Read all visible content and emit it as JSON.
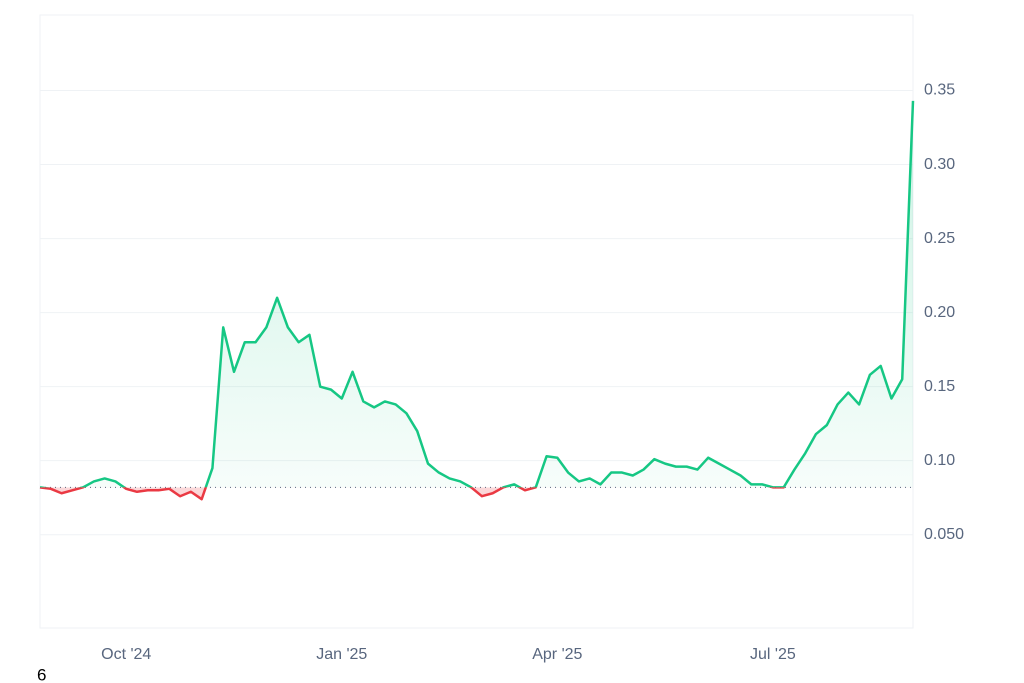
{
  "footer_text": "6",
  "chart_data": {
    "type": "line",
    "categories": [
      null,
      null,
      null,
      null,
      null,
      null,
      null,
      null,
      "Oct '24",
      null,
      null,
      null,
      null,
      null,
      null,
      null,
      null,
      null,
      null,
      null,
      null,
      null,
      null,
      null,
      null,
      null,
      null,
      null,
      "Jan '25",
      null,
      null,
      null,
      null,
      null,
      null,
      null,
      null,
      null,
      null,
      null,
      null,
      null,
      null,
      null,
      null,
      null,
      null,
      null,
      "Apr '25",
      null,
      null,
      null,
      null,
      null,
      null,
      null,
      null,
      null,
      null,
      null,
      null,
      null,
      null,
      null,
      null,
      null,
      null,
      null,
      "Jul '25",
      null,
      null,
      null,
      null,
      null,
      null,
      null,
      null,
      null,
      null,
      null,
      null,
      null
    ],
    "values": [
      0.082,
      0.081,
      0.078,
      0.08,
      0.082,
      0.086,
      0.088,
      0.086,
      0.081,
      0.079,
      0.08,
      0.08,
      0.081,
      0.076,
      0.079,
      0.074,
      0.095,
      0.19,
      0.16,
      0.18,
      0.18,
      0.19,
      0.21,
      0.19,
      0.18,
      0.185,
      0.15,
      0.148,
      0.142,
      0.16,
      0.14,
      0.136,
      0.14,
      0.138,
      0.132,
      0.12,
      0.098,
      0.092,
      0.088,
      0.086,
      0.082,
      0.076,
      0.078,
      0.082,
      0.084,
      0.08,
      0.082,
      0.103,
      0.102,
      0.092,
      0.086,
      0.088,
      0.084,
      0.092,
      0.092,
      0.09,
      0.094,
      0.101,
      0.098,
      0.096,
      0.096,
      0.094,
      0.102,
      0.098,
      0.094,
      0.09,
      0.084,
      0.084,
      0.082,
      0.082,
      0.094,
      0.105,
      0.118,
      0.124,
      0.138,
      0.146,
      0.138,
      0.158,
      0.164,
      0.142,
      0.155,
      0.343
    ],
    "baseline": 0.082,
    "up_color": "#16c784",
    "down_color": "#ea3943",
    "ylim": [
      -0.013,
      0.401
    ],
    "yticks": [
      {
        "value": 0.05,
        "label": "0.050"
      },
      {
        "value": 0.1,
        "label": "0.10"
      },
      0.15,
      {
        "value": 0.2,
        "label": "0.20"
      },
      0.25,
      {
        "value": 0.3,
        "label": "0.30"
      },
      0.35
    ],
    "grid": true
  }
}
